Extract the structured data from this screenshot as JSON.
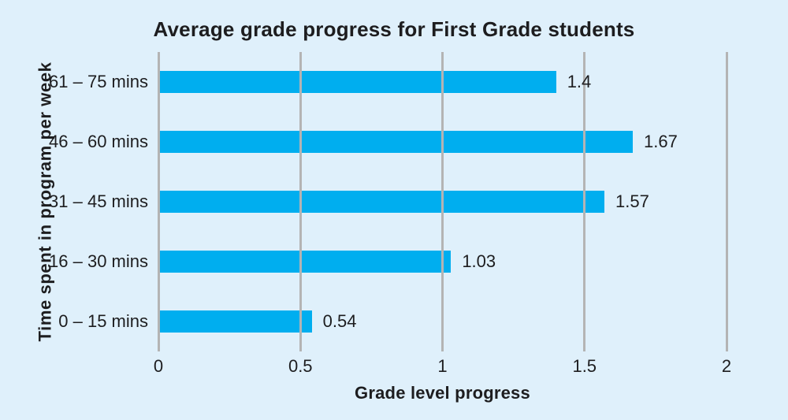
{
  "chart_data": {
    "type": "bar",
    "orientation": "horizontal",
    "title": "Average grade progress for First Grade students",
    "xlabel": "Grade level progress",
    "ylabel": "Time spent in program per week",
    "categories": [
      "61 – 75 mins",
      "46 – 60 mins",
      "31 – 45 mins",
      "16 – 30 mins",
      "0 – 15 mins"
    ],
    "values": [
      1.4,
      1.67,
      1.57,
      1.03,
      0.54
    ],
    "value_labels": [
      "1.4",
      "1.67",
      "1.57",
      "1.03",
      "0.54"
    ],
    "xlim": [
      0,
      2
    ],
    "xticks": [
      0,
      0.5,
      1,
      1.5,
      2
    ],
    "xtick_labels": [
      "0",
      "0.5",
      "1",
      "1.5",
      "2"
    ],
    "grid": "vertical-gridlines-over-bars",
    "legend": "none",
    "colors": {
      "background": "#dff0fb",
      "bar": "#00aeef",
      "gridline": "#b4b4b4",
      "text": "#1d1d1f"
    }
  }
}
